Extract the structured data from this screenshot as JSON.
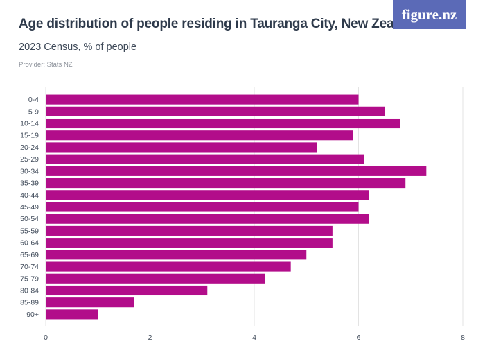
{
  "header": {
    "title": "Age distribution of people residing in Tauranga City, New Zealand",
    "subtitle": "2023 Census, % of people",
    "provider": "Provider: Stats NZ",
    "logo_text": "figure.nz"
  },
  "colors": {
    "bar": "#b20d8a",
    "grid": "#e3e3e3",
    "logo_bg": "#5b6ab7"
  },
  "chart_data": {
    "type": "bar",
    "orientation": "horizontal",
    "categories": [
      "0-4",
      "5-9",
      "10-14",
      "15-19",
      "20-24",
      "25-29",
      "30-34",
      "35-39",
      "40-44",
      "45-49",
      "50-54",
      "55-59",
      "60-64",
      "65-69",
      "70-74",
      "75-79",
      "80-84",
      "85-89",
      "90+"
    ],
    "values": [
      6.0,
      6.5,
      6.8,
      5.9,
      5.2,
      6.1,
      7.3,
      6.9,
      6.2,
      6.0,
      6.2,
      5.5,
      5.5,
      5.0,
      4.7,
      4.2,
      3.1,
      1.7,
      1.0
    ],
    "title": "Age distribution of people residing in Tauranga City, New Zealand",
    "subtitle": "2023 Census, % of people",
    "xlabel": "",
    "ylabel": "",
    "xlim": [
      0,
      8
    ],
    "xticks": [
      "0",
      "2",
      "4",
      "6",
      "8"
    ],
    "grid": true,
    "legend": "none"
  }
}
